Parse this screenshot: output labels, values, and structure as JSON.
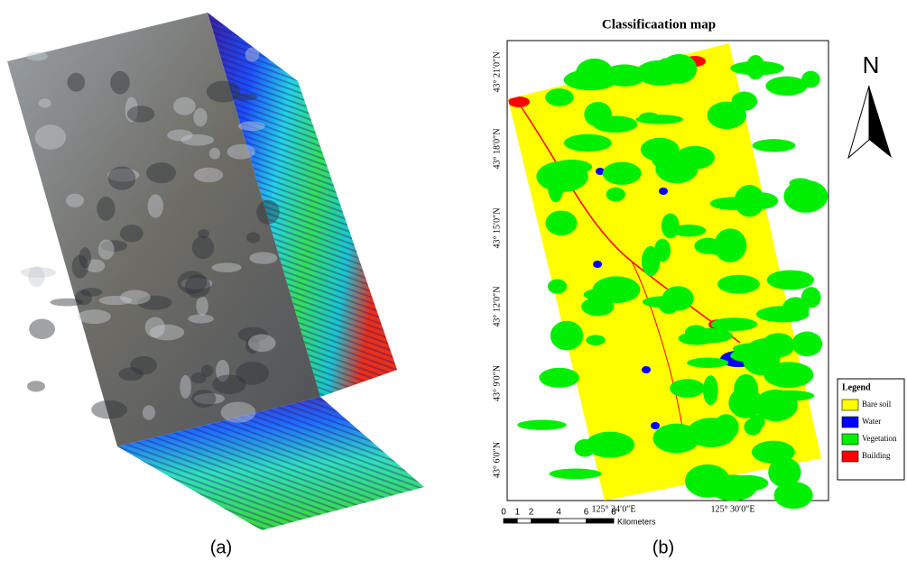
{
  "figure_a": {
    "caption": "(a)"
  },
  "figure_b": {
    "caption": "(b)",
    "title": "Classificaation map",
    "north": "N",
    "lat_labels": [
      "43° 21′0″N",
      "43° 18′0″N",
      "43° 15′0″N",
      "43° 12′0″N",
      "43° 9′0″N",
      "43° 6′0″N"
    ],
    "lon_labels": [
      "125° 24′0″E",
      "125° 30′0″E"
    ],
    "scale": {
      "ticks": [
        0,
        1,
        2,
        4,
        6,
        8
      ],
      "unit": "Kilometers"
    },
    "legend": {
      "title": "Legend",
      "items": [
        {
          "name": "Bare soil",
          "color": "#ffff00"
        },
        {
          "name": "Water",
          "color": "#0000ff"
        },
        {
          "name": "Vegetation",
          "color": "#00ee00"
        },
        {
          "name": "Building",
          "color": "#ff0000"
        }
      ]
    }
  }
}
